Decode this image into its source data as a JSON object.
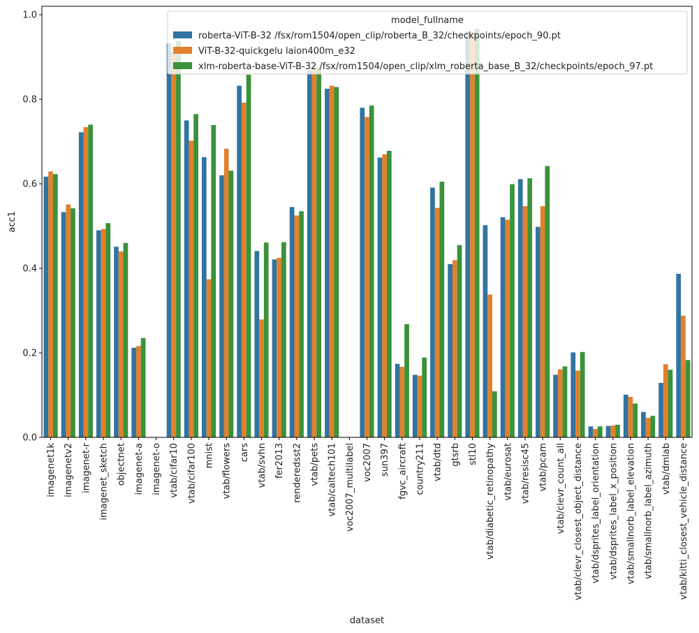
{
  "chart_data": {
    "type": "bar",
    "xlabel": "dataset",
    "ylabel": "acc1",
    "ylim": [
      0,
      1.02
    ],
    "yticks": [
      "0.0",
      "0.2",
      "0.4",
      "0.6",
      "0.8",
      "1.0"
    ],
    "legend": {
      "title": "model_fullname",
      "placement": "top-right"
    },
    "categories": [
      "imagenet1k",
      "imagenetv2",
      "imagenet-r",
      "imagenet_sketch",
      "objectnet",
      "imagenet-a",
      "imagenet-o",
      "vtab/cifar10",
      "vtab/cifar100",
      "mnist",
      "vtab/flowers",
      "cars",
      "vtab/svhn",
      "fer2013",
      "renderedsst2",
      "vtab/pets",
      "vtab/caltech101",
      "voc2007_multilabel",
      "voc2007",
      "sun397",
      "fgvc_aircraft",
      "country211",
      "vtab/dtd",
      "gtsrb",
      "stl10",
      "vtab/diabetic_retinopathy",
      "vtab/eurosat",
      "vtab/resisc45",
      "vtab/pcam",
      "vtab/clevr_count_all",
      "vtab/clevr_closest_object_distance",
      "vtab/dsprites_label_orientation",
      "vtab/dsprites_label_x_position",
      "vtab/smallnorb_label_elevation",
      "vtab/smallnorb_label_azimuth",
      "vtab/dmlab",
      "vtab/kitti_closest_vehicle_distance"
    ],
    "series": [
      {
        "name": "roberta-ViT-B-32 /fsx/rom1504/open_clip/roberta_B_32/checkpoints/epoch_90.pt",
        "color": "#3274a1",
        "values": [
          0.617,
          0.533,
          0.722,
          0.49,
          0.451,
          0.212,
          0.0,
          0.932,
          0.75,
          0.663,
          0.62,
          0.832,
          0.441,
          0.421,
          0.545,
          0.868,
          0.825,
          0.0,
          0.78,
          0.662,
          0.174,
          0.148,
          0.591,
          0.41,
          0.96,
          0.502,
          0.521,
          0.611,
          0.498,
          0.148,
          0.201,
          0.026,
          0.027,
          0.101,
          0.06,
          0.129,
          0.387
        ]
      },
      {
        "name": "ViT-B-32-quickgelu laion400m_e32",
        "color": "#e1812c",
        "values": [
          0.629,
          0.551,
          0.734,
          0.493,
          0.44,
          0.216,
          0.0,
          0.912,
          0.702,
          0.374,
          0.683,
          0.792,
          0.279,
          0.425,
          0.525,
          0.87,
          0.832,
          0.0,
          0.758,
          0.67,
          0.167,
          0.146,
          0.543,
          0.419,
          0.958,
          0.338,
          0.515,
          0.547,
          0.547,
          0.161,
          0.158,
          0.02,
          0.028,
          0.096,
          0.046,
          0.173,
          0.288
        ]
      },
      {
        "name": "xlm-roberta-base-ViT-B-32 /fsx/rom1504/open_clip/xlm_roberta_base_B_32/checkpoints/epoch_97.pt",
        "color": "#3a923a",
        "values": [
          0.623,
          0.542,
          0.74,
          0.507,
          0.46,
          0.235,
          0.0,
          0.938,
          0.765,
          0.739,
          0.631,
          0.858,
          0.461,
          0.462,
          0.535,
          0.875,
          0.829,
          0.0,
          0.785,
          0.678,
          0.268,
          0.189,
          0.605,
          0.455,
          0.967,
          0.109,
          0.599,
          0.613,
          0.642,
          0.168,
          0.202,
          0.026,
          0.03,
          0.08,
          0.051,
          0.16,
          0.183
        ]
      }
    ]
  }
}
